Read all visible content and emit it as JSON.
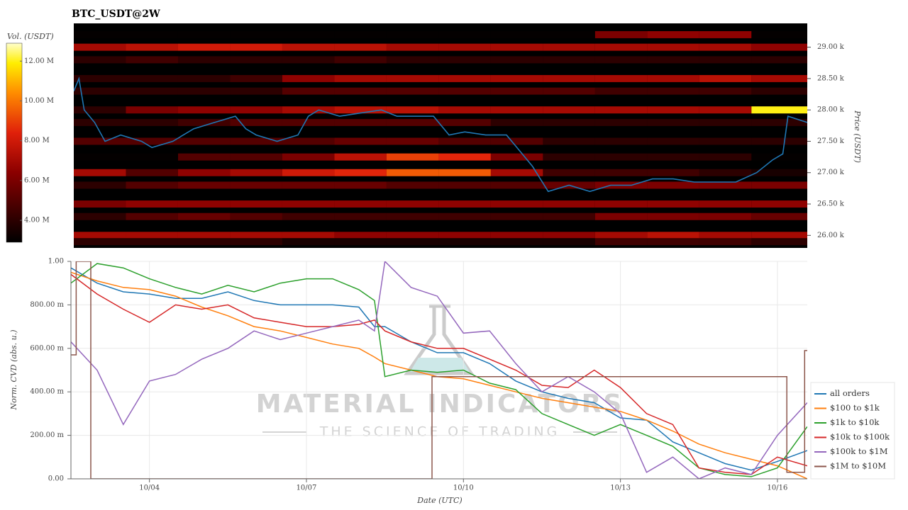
{
  "chart_data": [
    {
      "type": "heatmap",
      "title": "BTC_USDT@2W",
      "ylabel": "Price (USDT)",
      "colorbar_label": "Vol. (USDT)",
      "xlim": [
        2.5,
        16.57
      ],
      "ylim": [
        25800,
        29380
      ],
      "yticks": [
        {
          "value": 26000,
          "label": "26.00 k"
        },
        {
          "value": 26500,
          "label": "26.50 k"
        },
        {
          "value": 27000,
          "label": "27.00 k"
        },
        {
          "value": 27500,
          "label": "27.50 k"
        },
        {
          "value": 28000,
          "label": "28.00 k"
        },
        {
          "value": 28500,
          "label": "28.50 k"
        },
        {
          "value": 29000,
          "label": "29.00 k"
        }
      ],
      "clim": [
        2.9,
        12.9
      ],
      "cticks": [
        {
          "value": 4,
          "label": "4.00 M"
        },
        {
          "value": 6,
          "label": "6.00 M"
        },
        {
          "value": 8,
          "label": "8.00 M"
        },
        {
          "value": 10,
          "label": "10.00 M"
        },
        {
          "value": 12,
          "label": "12.00 M"
        }
      ],
      "heatmap": {
        "x": [
          3,
          4,
          5,
          6,
          7,
          8,
          9,
          10,
          11,
          12,
          13,
          14,
          15,
          16
        ],
        "y": [
          29200,
          29000,
          28800,
          28500,
          28300,
          28000,
          27800,
          27500,
          27250,
          27000,
          26800,
          26500,
          26300,
          26000,
          25900
        ],
        "z": [
          [
            3,
            3,
            3,
            3,
            3,
            3,
            3,
            3,
            3,
            3,
            6,
            6.5,
            6.5,
            3
          ],
          [
            7,
            7.5,
            8,
            8,
            7.5,
            7.5,
            7,
            7,
            7,
            7,
            7,
            7,
            7,
            6.5
          ],
          [
            4,
            4.5,
            4,
            4,
            4,
            4.5,
            4,
            4,
            4,
            4,
            4,
            4,
            4,
            4
          ],
          [
            4,
            4,
            4,
            4.5,
            6.5,
            7,
            7,
            7,
            7,
            7,
            7,
            7,
            7.5,
            7
          ],
          [
            4,
            4,
            4,
            4,
            5,
            5,
            5,
            5,
            5,
            5,
            4.5,
            4.5,
            4.5,
            4
          ],
          [
            4,
            6,
            6.5,
            6.5,
            7,
            7.5,
            7.5,
            7,
            7,
            7,
            7,
            7,
            7,
            12
          ],
          [
            4,
            4,
            4.5,
            5,
            5,
            5,
            5,
            5,
            4,
            4,
            4,
            4,
            4,
            4
          ],
          [
            5,
            5,
            5,
            5,
            5,
            5.5,
            5.5,
            5,
            5,
            4,
            4,
            4,
            4,
            4
          ],
          [
            3,
            3,
            5,
            5,
            6,
            7.5,
            9,
            8.5,
            6,
            4,
            4,
            4,
            4,
            3
          ],
          [
            7,
            5,
            6.5,
            7,
            8,
            8.5,
            9.5,
            9.5,
            7,
            4.5,
            4.5,
            4.5,
            4,
            3.5
          ],
          [
            4,
            5,
            5.5,
            5.5,
            5.5,
            5.5,
            5,
            5,
            5,
            5.5,
            6,
            6,
            6,
            6
          ],
          [
            6,
            6.5,
            6.5,
            6.5,
            6.5,
            6.5,
            6.5,
            6.5,
            6.5,
            6.5,
            6.5,
            6.5,
            6.5,
            6.5
          ],
          [
            4,
            5,
            5.5,
            5,
            4.5,
            4.5,
            4.5,
            4.5,
            4.5,
            4.5,
            6,
            6,
            6,
            5.5
          ],
          [
            7,
            7,
            7,
            7,
            7,
            6.5,
            6.5,
            6.5,
            6.5,
            6.5,
            7,
            7.5,
            7,
            7
          ],
          [
            4,
            4,
            4,
            4,
            3.5,
            3.5,
            3.5,
            3.5,
            3.5,
            3.5,
            4.5,
            4.5,
            4.5,
            4
          ]
        ]
      },
      "series": [
        {
          "color": "#1f77b4",
          "x": [
            2.5,
            2.6,
            2.7,
            2.9,
            3.1,
            3.4,
            3.8,
            4.0,
            4.4,
            4.8,
            5.2,
            5.6,
            5.8,
            6.0,
            6.4,
            6.8,
            7.0,
            7.2,
            7.6,
            8.0,
            8.4,
            8.7,
            9.0,
            9.4,
            9.7,
            10.0,
            10.4,
            10.8,
            11.0,
            11.3,
            11.6,
            12.0,
            12.4,
            12.8,
            13.2,
            13.6,
            14.0,
            14.4,
            14.8,
            15.2,
            15.6,
            15.9,
            16.1,
            16.2,
            16.57
          ],
          "values": [
            28300,
            28500,
            28000,
            27800,
            27500,
            27600,
            27500,
            27400,
            27500,
            27700,
            27800,
            27900,
            27700,
            27600,
            27500,
            27600,
            27900,
            28000,
            27900,
            27950,
            28000,
            27900,
            27900,
            27900,
            27600,
            27650,
            27600,
            27600,
            27400,
            27100,
            26700,
            26800,
            26700,
            26800,
            26800,
            26900,
            26900,
            26850,
            26850,
            26850,
            27000,
            27200,
            27300,
            27900,
            27800
          ]
        }
      ]
    },
    {
      "type": "line",
      "ylabel": "Norm. CVD (abs. u.)",
      "xlabel": "Date (UTC)",
      "xlim": [
        2.5,
        16.57
      ],
      "ylim": [
        0,
        1
      ],
      "xticks": [
        {
          "value": 4,
          "label": "10/04"
        },
        {
          "value": 7,
          "label": "10/07"
        },
        {
          "value": 10,
          "label": "10/10"
        },
        {
          "value": 13,
          "label": "10/13"
        },
        {
          "value": 16,
          "label": "10/16"
        }
      ],
      "yticks": [
        {
          "value": 0,
          "label": "0.00"
        },
        {
          "value": 0.2,
          "label": "200.00 m"
        },
        {
          "value": 0.4,
          "label": "400.00 m"
        },
        {
          "value": 0.6,
          "label": "600.00 m"
        },
        {
          "value": 0.8,
          "label": "800.00 m"
        },
        {
          "value": 1,
          "label": "1.00"
        }
      ],
      "grid": true,
      "legend": "right",
      "x": [
        2.5,
        3,
        3.5,
        4,
        4.5,
        5,
        5.5,
        6,
        6.5,
        7,
        7.5,
        8,
        8.3,
        8.5,
        9,
        9.5,
        10,
        10.5,
        11,
        11.5,
        12,
        12.5,
        13,
        13.5,
        14,
        14.5,
        15,
        15.5,
        16,
        16.57
      ],
      "series": [
        {
          "name": "all orders",
          "color": "#1f77b4",
          "values": [
            0.97,
            0.9,
            0.86,
            0.85,
            0.83,
            0.83,
            0.86,
            0.82,
            0.8,
            0.8,
            0.8,
            0.79,
            0.7,
            0.7,
            0.63,
            0.58,
            0.58,
            0.53,
            0.45,
            0.4,
            0.37,
            0.35,
            0.28,
            0.27,
            0.17,
            0.12,
            0.07,
            0.04,
            0.08,
            0.13
          ]
        },
        {
          "name": "$100 to $1k",
          "color": "#ff7f0e",
          "values": [
            0.95,
            0.91,
            0.88,
            0.87,
            0.84,
            0.79,
            0.75,
            0.7,
            0.68,
            0.65,
            0.62,
            0.6,
            0.56,
            0.53,
            0.5,
            0.47,
            0.46,
            0.43,
            0.4,
            0.37,
            0.35,
            0.33,
            0.31,
            0.27,
            0.22,
            0.16,
            0.12,
            0.09,
            0.06,
            0.0
          ]
        },
        {
          "name": "$1k to $10k",
          "color": "#2ca02c",
          "values": [
            0.9,
            0.99,
            0.97,
            0.92,
            0.88,
            0.85,
            0.89,
            0.86,
            0.9,
            0.92,
            0.92,
            0.87,
            0.82,
            0.47,
            0.5,
            0.49,
            0.5,
            0.44,
            0.41,
            0.3,
            0.25,
            0.2,
            0.25,
            0.2,
            0.15,
            0.05,
            0.02,
            0.01,
            0.05,
            0.24
          ]
        },
        {
          "name": "$10k to $100k",
          "color": "#d62728",
          "values": [
            0.94,
            0.85,
            0.78,
            0.72,
            0.8,
            0.78,
            0.8,
            0.74,
            0.72,
            0.7,
            0.7,
            0.71,
            0.73,
            0.68,
            0.63,
            0.6,
            0.6,
            0.55,
            0.5,
            0.43,
            0.42,
            0.5,
            0.42,
            0.3,
            0.25,
            0.05,
            0.03,
            0.02,
            0.1,
            0.06
          ]
        },
        {
          "name": "$100k to $1M",
          "color": "#9467bd",
          "values": [
            0.63,
            0.5,
            0.25,
            0.45,
            0.48,
            0.55,
            0.6,
            0.68,
            0.64,
            0.67,
            0.7,
            0.73,
            0.68,
            1.0,
            0.88,
            0.84,
            0.67,
            0.68,
            0.53,
            0.4,
            0.47,
            0.4,
            0.3,
            0.03,
            0.1,
            0.0,
            0.05,
            0.02,
            0.2,
            0.35
          ]
        },
        {
          "name": "$1M to $10M",
          "color": "#8c564b",
          "x": [
            2.5,
            2.6,
            2.6,
            2.88,
            2.88,
            9.4,
            9.4,
            16.18,
            16.18,
            16.52,
            16.52,
            16.57
          ],
          "values": [
            0.57,
            0.57,
            1.0,
            1.0,
            0.0,
            0.0,
            0.47,
            0.47,
            0.03,
            0.03,
            0.59,
            0.59
          ]
        }
      ]
    }
  ],
  "watermark": {
    "title": "MATERIAL INDICATORS",
    "subtitle": "THE SCIENCE OF TRADING"
  }
}
